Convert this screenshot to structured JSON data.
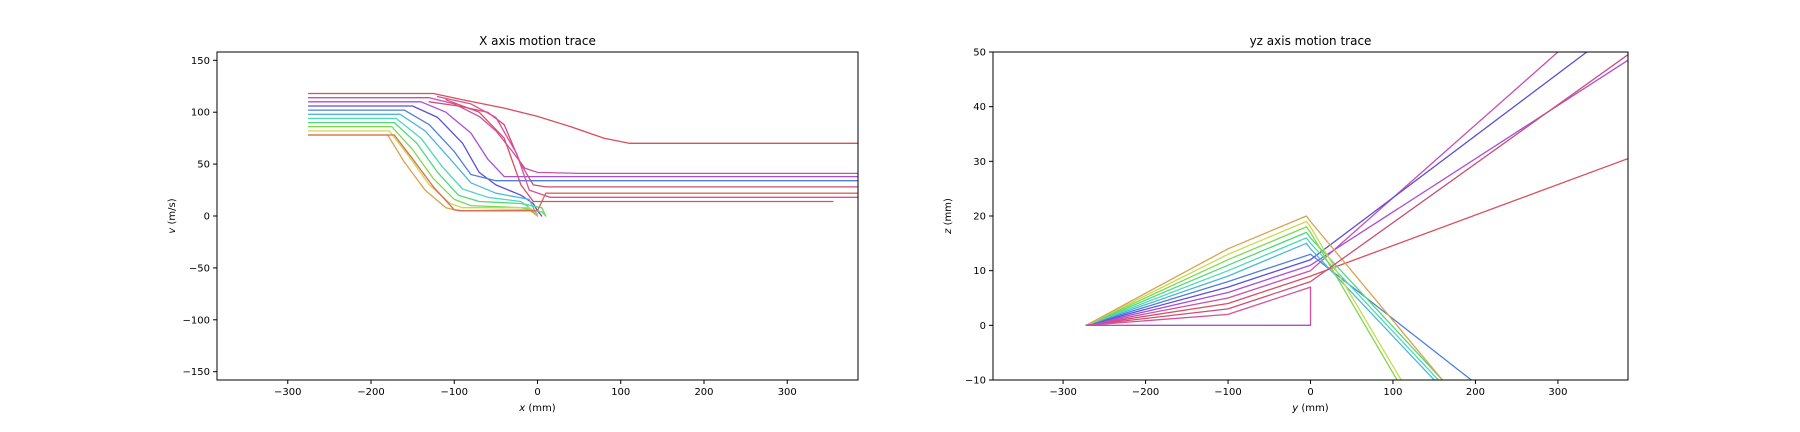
{
  "chart_data": [
    {
      "type": "line",
      "title": "X axis motion trace",
      "xlabel_var": "x",
      "xlabel_unit": " (mm)",
      "ylabel_var": "v",
      "ylabel_unit": " (m/s)",
      "xlim": [
        -385,
        385
      ],
      "ylim": [
        -158,
        158
      ],
      "xticks": [
        -300,
        -200,
        -100,
        0,
        100,
        200,
        300
      ],
      "yticks": [
        -150,
        -100,
        -50,
        0,
        50,
        100,
        150
      ],
      "series": [
        {
          "color": "#d94f5c",
          "points": [
            [
              -275,
              118
            ],
            [
              -125,
              118
            ],
            [
              -90,
              112
            ],
            [
              -40,
              104
            ],
            [
              0,
              96
            ],
            [
              40,
              86
            ],
            [
              80,
              75
            ],
            [
              110,
              70
            ],
            [
              200,
              70
            ],
            [
              385,
              70
            ]
          ]
        },
        {
          "color": "#c94fb0",
          "points": [
            [
              -275,
              114
            ],
            [
              -130,
              114
            ],
            [
              -100,
              108
            ],
            [
              -70,
              96
            ],
            [
              -50,
              82
            ],
            [
              -30,
              62
            ],
            [
              -15,
              46
            ],
            [
              0,
              42
            ],
            [
              50,
              41
            ],
            [
              385,
              41
            ]
          ]
        },
        {
          "color": "#a84fd9",
          "points": [
            [
              -275,
              110
            ],
            [
              -140,
              110
            ],
            [
              -110,
              100
            ],
            [
              -80,
              80
            ],
            [
              -60,
              55
            ],
            [
              -40,
              38
            ],
            [
              0,
              38
            ],
            [
              385,
              38
            ]
          ]
        },
        {
          "color": "#5b4fd9",
          "points": [
            [
              -275,
              106
            ],
            [
              -150,
              106
            ],
            [
              -120,
              95
            ],
            [
              -90,
              70
            ],
            [
              -70,
              42
            ],
            [
              -50,
              30
            ],
            [
              -20,
              20
            ],
            [
              -5,
              12
            ],
            [
              0,
              5
            ],
            [
              5,
              0
            ]
          ]
        },
        {
          "color": "#4f7fd9",
          "points": [
            [
              -275,
              102
            ],
            [
              -160,
              102
            ],
            [
              -130,
              88
            ],
            [
              -100,
              62
            ],
            [
              -80,
              40
            ],
            [
              -50,
              34
            ],
            [
              385,
              34
            ]
          ]
        },
        {
          "color": "#4fb8d9",
          "points": [
            [
              -275,
              98
            ],
            [
              -165,
              98
            ],
            [
              -135,
              82
            ],
            [
              -105,
              55
            ],
            [
              -80,
              32
            ],
            [
              -50,
              22
            ],
            [
              -10,
              16
            ],
            [
              0,
              0
            ]
          ]
        },
        {
          "color": "#4fd9b8",
          "points": [
            [
              -275,
              94
            ],
            [
              -170,
              94
            ],
            [
              -140,
              75
            ],
            [
              -115,
              48
            ],
            [
              -90,
              26
            ],
            [
              -60,
              18
            ],
            [
              -20,
              14
            ],
            [
              0,
              2
            ]
          ]
        },
        {
          "color": "#4fd97a",
          "points": [
            [
              -275,
              90
            ],
            [
              -172,
              90
            ],
            [
              -145,
              70
            ],
            [
              -120,
              42
            ],
            [
              -95,
              20
            ],
            [
              -70,
              14
            ],
            [
              -20,
              12
            ],
            [
              5,
              8
            ],
            [
              10,
              0
            ]
          ]
        },
        {
          "color": "#7fd94f",
          "points": [
            [
              -275,
              86
            ],
            [
              -175,
              86
            ],
            [
              -150,
              64
            ],
            [
              -125,
              36
            ],
            [
              -100,
              16
            ],
            [
              -80,
              10
            ],
            [
              -20,
              8
            ],
            [
              5,
              4
            ],
            [
              10,
              0
            ]
          ]
        },
        {
          "color": "#c9d94f",
          "points": [
            [
              -275,
              82
            ],
            [
              -178,
              82
            ],
            [
              -155,
              58
            ],
            [
              -130,
              30
            ],
            [
              -105,
              12
            ],
            [
              -90,
              8
            ],
            [
              -10,
              8
            ],
            [
              0,
              0
            ]
          ]
        },
        {
          "color": "#d9a24f",
          "points": [
            [
              -275,
              78
            ],
            [
              -180,
              78
            ],
            [
              -160,
              52
            ],
            [
              -135,
              25
            ],
            [
              -110,
              8
            ],
            [
              -95,
              5
            ],
            [
              -10,
              6
            ],
            [
              0,
              0
            ]
          ]
        },
        {
          "color": "#d96b4f",
          "points": [
            [
              -275,
              78
            ],
            [
              -172,
              78
            ],
            [
              -150,
              55
            ],
            [
              -125,
              28
            ],
            [
              -100,
              6
            ],
            [
              -90,
              5
            ],
            [
              0,
              5
            ],
            [
              10,
              22
            ],
            [
              20,
              22
            ],
            [
              385,
              22
            ]
          ]
        },
        {
          "color": "#c94f7a",
          "points": [
            [
              -130,
              110
            ],
            [
              -95,
              106
            ],
            [
              -60,
              100
            ],
            [
              -40,
              88
            ],
            [
              -20,
              50
            ],
            [
              -5,
              30
            ],
            [
              10,
              28
            ],
            [
              50,
              28
            ],
            [
              385,
              28
            ]
          ]
        },
        {
          "color": "#d94f9a",
          "points": [
            [
              -120,
              115
            ],
            [
              -80,
              108
            ],
            [
              -50,
              95
            ],
            [
              -25,
              60
            ],
            [
              -10,
              25
            ],
            [
              15,
              18
            ],
            [
              60,
              18
            ],
            [
              385,
              18
            ]
          ]
        },
        {
          "color": "#d94f5c",
          "points": [
            [
              -110,
              112
            ],
            [
              -70,
              100
            ],
            [
              -40,
              75
            ],
            [
              -20,
              30
            ],
            [
              -5,
              14
            ],
            [
              20,
              14
            ],
            [
              300,
              14
            ],
            [
              355,
              14
            ]
          ]
        }
      ]
    },
    {
      "type": "line",
      "title": "yz axis motion trace",
      "xlabel_var": "y",
      "xlabel_unit": " (mm)",
      "ylabel_var": "z",
      "ylabel_unit": " (mm)",
      "xlim": [
        -385,
        385
      ],
      "ylim": [
        -10,
        50
      ],
      "xticks": [
        -300,
        -200,
        -100,
        0,
        100,
        200,
        300
      ],
      "yticks": [
        -10,
        0,
        10,
        20,
        30,
        40,
        50
      ],
      "series": [
        {
          "color": "#d94f5c",
          "points": [
            [
              -272,
              0
            ],
            [
              -100,
              4
            ],
            [
              0,
              9
            ],
            [
              385,
              30.5
            ]
          ]
        },
        {
          "color": "#c94fb0",
          "points": [
            [
              -272,
              0
            ],
            [
              -100,
              5
            ],
            [
              0,
              10
            ],
            [
              300,
              50
            ]
          ]
        },
        {
          "color": "#a84fd9",
          "points": [
            [
              -272,
              0
            ],
            [
              -100,
              6
            ],
            [
              0,
              11
            ],
            [
              385,
              48.5
            ]
          ]
        },
        {
          "color": "#5b4fd9",
          "points": [
            [
              -272,
              0
            ],
            [
              -100,
              7
            ],
            [
              0,
              12
            ],
            [
              335,
              50
            ]
          ]
        },
        {
          "color": "#4f7fd9",
          "points": [
            [
              -272,
              0
            ],
            [
              -100,
              8
            ],
            [
              0,
              13
            ],
            [
              195,
              -10
            ]
          ]
        },
        {
          "color": "#4fb8d9",
          "points": [
            [
              -272,
              0
            ],
            [
              -100,
              9
            ],
            [
              -5,
              15
            ],
            [
              0,
              14
            ],
            [
              150,
              -10
            ]
          ]
        },
        {
          "color": "#4fd9b8",
          "points": [
            [
              -272,
              0
            ],
            [
              -100,
              10
            ],
            [
              -5,
              16
            ],
            [
              0,
              15
            ],
            [
              155,
              -10
            ]
          ]
        },
        {
          "color": "#4fd97a",
          "points": [
            [
              -272,
              0
            ],
            [
              -100,
              11
            ],
            [
              -5,
              17
            ],
            [
              0,
              16
            ],
            [
              160,
              -10
            ]
          ]
        },
        {
          "color": "#7fd94f",
          "points": [
            [
              -272,
              0
            ],
            [
              -100,
              12
            ],
            [
              -5,
              18
            ],
            [
              0,
              17
            ],
            [
              105,
              -10
            ]
          ]
        },
        {
          "color": "#c9d94f",
          "points": [
            [
              -272,
              0
            ],
            [
              -100,
              13
            ],
            [
              -5,
              19
            ],
            [
              0,
              18
            ],
            [
              110,
              -10
            ]
          ]
        },
        {
          "color": "#d9a24f",
          "points": [
            [
              -272,
              0
            ],
            [
              -100,
              14
            ],
            [
              -5,
              20
            ],
            [
              0,
              19
            ],
            [
              160,
              -10
            ]
          ]
        },
        {
          "color": "#c94f7a",
          "points": [
            [
              -272,
              0
            ],
            [
              -100,
              3
            ],
            [
              0,
              8
            ],
            [
              385,
              49.5
            ]
          ]
        },
        {
          "color": "#d94f9a",
          "points": [
            [
              -272,
              0
            ],
            [
              -100,
              2
            ],
            [
              0,
              7
            ],
            [
              0,
              0
            ]
          ]
        },
        {
          "color": "#a84fd9",
          "points": [
            [
              -272,
              0
            ],
            [
              0,
              0
            ]
          ]
        }
      ]
    }
  ]
}
